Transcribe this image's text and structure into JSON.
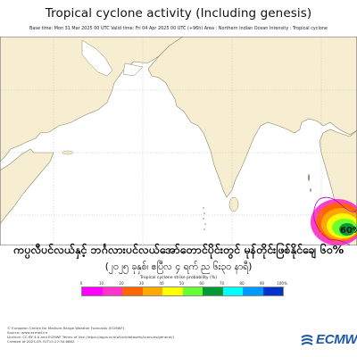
{
  "header": {
    "title": "Tropical cyclone activity (Including genesis)",
    "subtitle": "Base time: Mon 31 Mar 2025 00 UTC Valid time: Fri 04 Apr 2025 00 UTC (+96h) Area : Northern Indian Ocean Intensity : Tropical cyclone"
  },
  "map": {
    "probability_label": "60%",
    "probability_value": 60,
    "hotspot_region": "Bay of Bengal / Myanmar coast",
    "colors": {
      "land": "#f7eed2",
      "coast": "#8a8a6a",
      "grid": "#b0b0b0"
    }
  },
  "banner": {
    "line1": "ကပ္ပလီပင်လယ်နှင့် ဘင်္ဂလားပင်လယ်အော်တောင်ပိုင်းတွင် မုန်တိုင်းဖြစ်နိုင်ချေ ၆၀%",
    "line2": "(၂၀၂၅ ခုနှစ်၊ ဧပြီလ ၄ ရက် ည ၆း၃၀ နာရီ)"
  },
  "colorbar": {
    "label": "Tropical cyclone strike probability (%)",
    "ticks": [
      "0",
      "10",
      "20",
      "30",
      "40",
      "50",
      "60",
      "70",
      "80",
      "90",
      "100%"
    ],
    "colors": [
      "#ff00ff",
      "#ff33cc",
      "#ff6600",
      "#ffaa00",
      "#ffff00",
      "#66ff33",
      "#009933",
      "#00ffff",
      "#0099ff",
      "#0033cc"
    ]
  },
  "footer": {
    "lines": [
      "© European Centre for Medium-Range Weather Forecasts (ECMWF)",
      "Source: www.ecmwf.int",
      "Licence: CC BY 4.0 and ECMWF Terms of Use (https://apps.ecmwf.int/datasets/licences/general/)",
      "Created at 2025-03-31T15:27:30.6662"
    ]
  },
  "logo": {
    "text": "ECMWF"
  }
}
